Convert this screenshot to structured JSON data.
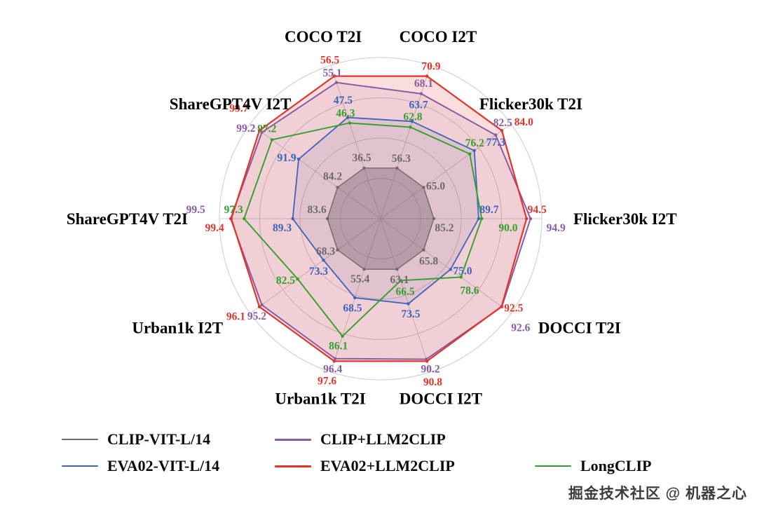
{
  "chart_data": {
    "type": "radar",
    "title": "",
    "categories": [
      "COCO T2I",
      "COCO I2T",
      "Flicker30k T2I",
      "Flicker30k I2T",
      "DOCCI T2I",
      "DOCCI I2T",
      "Urban1k T2I",
      "Urban1k I2T",
      "ShareGPT4V T2I",
      "ShareGPT4V I2T"
    ],
    "series": [
      {
        "name": "CLIP-VIT-L/14",
        "color": "#6b6b6b",
        "fill_opacity": 0.4,
        "stroke_width": 1.4,
        "values": [
          36.5,
          56.3,
          65.0,
          85.2,
          65.8,
          63.1,
          55.4,
          68.3,
          83.6,
          84.2
        ]
      },
      {
        "name": "EVA02-VIT-L/14",
        "color": "#3d63bc",
        "fill_opacity": 0.1,
        "stroke_width": 1.8,
        "values": [
          47.5,
          63.7,
          77.3,
          89.7,
          75.0,
          73.5,
          68.5,
          73.3,
          89.3,
          91.9
        ]
      },
      {
        "name": "CLIP+LLM2CLIP",
        "color": "#8a5ba6",
        "fill_opacity": 0.1,
        "stroke_width": 2.0,
        "values": [
          55.1,
          68.1,
          82.5,
          94.9,
          92.6,
          90.2,
          96.4,
          95.2,
          99.5,
          99.2
        ]
      },
      {
        "name": "EVA02+LLM2CLIP",
        "color": "#e2342a",
        "fill_opacity": 0.16,
        "stroke_width": 2.2,
        "values": [
          56.5,
          70.9,
          84.0,
          94.5,
          92.5,
          90.8,
          97.6,
          96.1,
          99.4,
          99.7
        ]
      },
      {
        "name": "LongCLIP",
        "color": "#33a02c",
        "fill_opacity": 0.0,
        "stroke_width": 1.9,
        "values": [
          46.3,
          62.8,
          76.2,
          90.0,
          78.6,
          66.5,
          86.1,
          82.5,
          97.3,
          97.2
        ]
      }
    ],
    "legend_rows": [
      [
        "CLIP-VIT-L/14",
        "CLIP+LLM2CLIP"
      ],
      [
        "EVA02-VIT-L/14",
        "EVA02+LLM2CLIP",
        "LongCLIP"
      ]
    ],
    "normalization": "per-axis-min-max",
    "inner_frac": 0.33,
    "outer_frac": 0.93,
    "grid": true,
    "grid_rings": 4,
    "grid_color": "#cccccc",
    "start_angle_deg": -108,
    "direction": "clockwise",
    "legend_position": "bottom"
  },
  "watermark": {
    "text": "掘金技术社区 @ 机器之心"
  }
}
